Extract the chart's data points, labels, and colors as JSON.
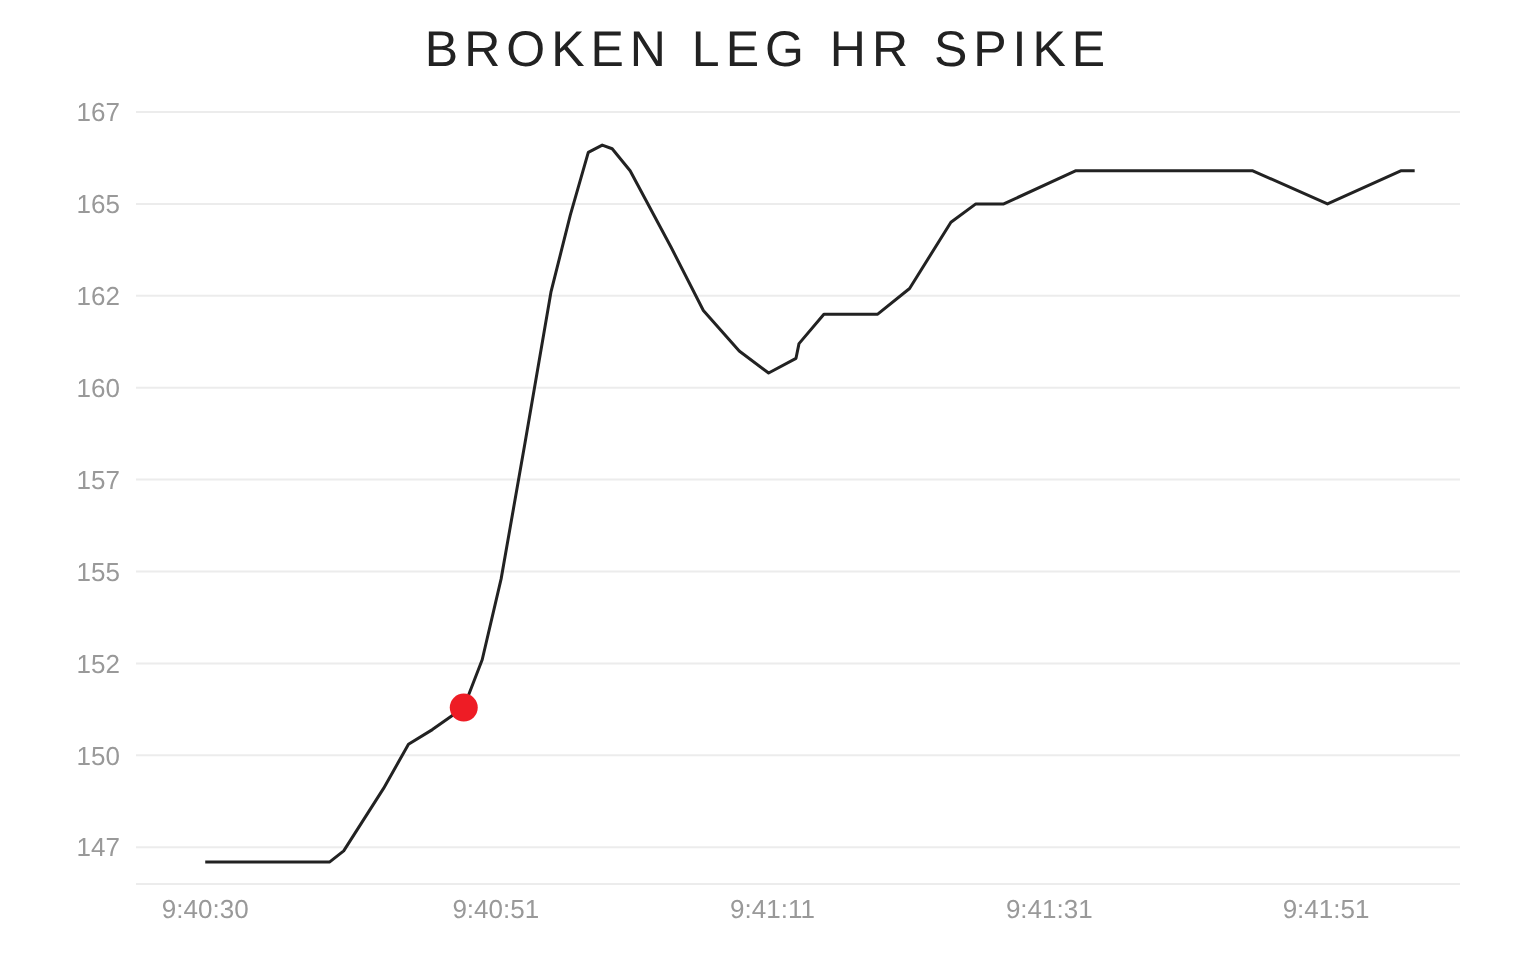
{
  "chart_data": {
    "type": "line",
    "title": "BROKEN LEG HR SPIKE",
    "grid": "y",
    "marker": "none",
    "xlim": [
      9.67361,
      9.70019
    ],
    "xticks": [
      {
        "value": 9.675,
        "label": "9:40:30"
      },
      {
        "value": 9.680833,
        "label": "9:40:51"
      },
      {
        "value": 9.686389,
        "label": "9:41:11"
      },
      {
        "value": 9.691944,
        "label": "9:41:31"
      },
      {
        "value": 9.6975,
        "label": "9:41:51"
      }
    ],
    "ylim": [
      146.5,
      167.5
    ],
    "yticks": [
      {
        "value": 147.5,
        "label": "147"
      },
      150,
      {
        "value": 152.5,
        "label": "152"
      },
      155,
      {
        "value": 157.5,
        "label": "157"
      },
      160,
      {
        "value": 162.5,
        "label": "162"
      },
      165,
      {
        "value": 167.5,
        "label": "167"
      }
    ],
    "series": [
      {
        "color": "#222222",
        "x": [
          9.675,
          9.6775,
          9.67778,
          9.67858,
          9.67908,
          9.67956,
          9.68019,
          9.68056,
          9.68094,
          9.68142,
          9.68194,
          9.68233,
          9.68269,
          9.68297,
          9.68317,
          9.68353,
          9.68436,
          9.685,
          9.68572,
          9.68631,
          9.68686,
          9.68692,
          9.68742,
          9.6885,
          9.68914,
          9.68997,
          9.69047,
          9.69103,
          9.69247,
          9.69603,
          9.69753,
          9.699,
          9.69928
        ],
        "values": [
          147.1,
          147.1,
          147.4,
          149.1,
          150.3,
          150.7,
          151.3,
          152.6,
          154.8,
          158.5,
          162.6,
          164.7,
          166.4,
          166.6,
          166.5,
          165.9,
          163.8,
          162.1,
          161.0,
          160.4,
          160.8,
          161.2,
          162.0,
          162.0,
          162.7,
          164.5,
          165.0,
          165.0,
          165.9,
          165.9,
          165.0,
          165.9,
          165.9
        ]
      },
      {
        "type": "scatter",
        "color": "#ee1c25",
        "marker": "circle",
        "x": [
          9.68019
        ],
        "values": [
          151.3
        ]
      }
    ]
  }
}
